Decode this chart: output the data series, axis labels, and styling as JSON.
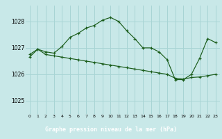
{
  "title": "Graphe pression niveau de la mer (hPa)",
  "bg_color": "#c8e8e8",
  "label_bg_color": "#2e6b2e",
  "label_text_color": "#ffffff",
  "grid_color": "#a8d4d4",
  "line_color": "#1a5c1a",
  "x_ticks": [
    0,
    1,
    2,
    3,
    4,
    5,
    6,
    7,
    8,
    9,
    10,
    11,
    12,
    13,
    14,
    15,
    16,
    17,
    18,
    19,
    20,
    21,
    22,
    23
  ],
  "y_ticks": [
    1025,
    1026,
    1027,
    1028
  ],
  "ylim": [
    1024.5,
    1028.6
  ],
  "xlim": [
    -0.5,
    23.5
  ],
  "series1_x": [
    0,
    1,
    2,
    3,
    4,
    5,
    6,
    7,
    8,
    9,
    10,
    11,
    12,
    13,
    14,
    15,
    16,
    17,
    18,
    19,
    20,
    21,
    22,
    23
  ],
  "series1_y": [
    1026.65,
    1026.95,
    1026.85,
    1026.8,
    1027.05,
    1027.4,
    1027.55,
    1027.75,
    1027.85,
    1028.05,
    1028.15,
    1028.0,
    1027.65,
    1027.35,
    1027.0,
    1027.0,
    1026.85,
    1026.55,
    1025.8,
    1025.8,
    1026.0,
    1026.6,
    1027.35,
    1027.2
  ],
  "series2_x": [
    0,
    1,
    2,
    3,
    4,
    5,
    6,
    7,
    8,
    9,
    10,
    11,
    12,
    13,
    14,
    15,
    16,
    17,
    18,
    19,
    20,
    21,
    22,
    23
  ],
  "series2_y": [
    1026.75,
    1026.95,
    1026.75,
    1026.7,
    1026.65,
    1026.6,
    1026.55,
    1026.5,
    1026.45,
    1026.4,
    1026.35,
    1026.3,
    1026.25,
    1026.2,
    1026.15,
    1026.1,
    1026.05,
    1026.0,
    1025.85,
    1025.82,
    1025.88,
    1025.9,
    1025.95,
    1026.0
  ],
  "fig_width": 3.2,
  "fig_height": 2.0,
  "dpi": 100
}
